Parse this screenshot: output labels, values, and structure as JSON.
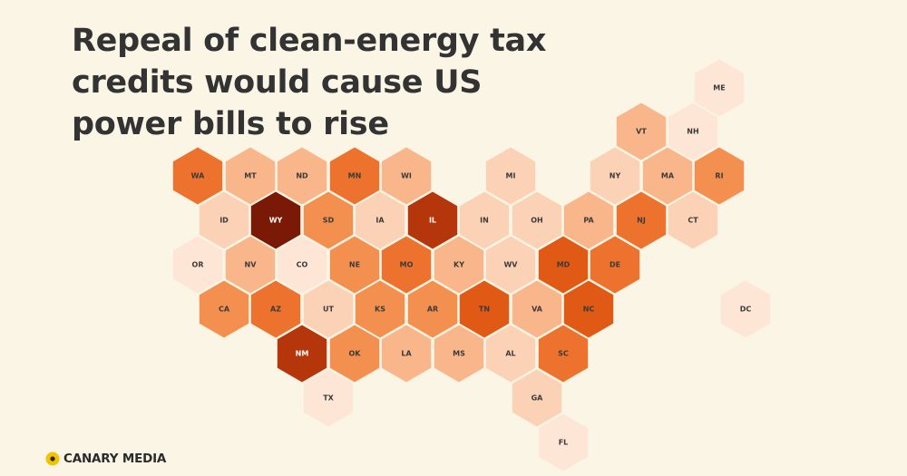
{
  "title": "Repeal of clean-energy tax credits would cause US power bills to rise",
  "brand": {
    "name": "CANARY MEDIA",
    "logo_icon": "canary-logo-icon"
  },
  "colors": {
    "background": "#fbf5e6",
    "title": "#333333",
    "scale": [
      "#fde6d6",
      "#fcd2b6",
      "#f9b68a",
      "#f3904f",
      "#ec722e",
      "#e15a15",
      "#b5360b",
      "#7a1a06"
    ]
  },
  "map": {
    "type": "hex tile map",
    "states": [
      {
        "code": "ME",
        "level": 0
      },
      {
        "code": "VT",
        "level": 2
      },
      {
        "code": "NH",
        "level": 0
      },
      {
        "code": "WA",
        "level": 4
      },
      {
        "code": "MT",
        "level": 2
      },
      {
        "code": "ND",
        "level": 2
      },
      {
        "code": "MN",
        "level": 4
      },
      {
        "code": "WI",
        "level": 2
      },
      {
        "code": "MI",
        "level": 1
      },
      {
        "code": "NY",
        "level": 1
      },
      {
        "code": "MA",
        "level": 2
      },
      {
        "code": "RI",
        "level": 3
      },
      {
        "code": "ID",
        "level": 1
      },
      {
        "code": "WY",
        "level": 7
      },
      {
        "code": "SD",
        "level": 3
      },
      {
        "code": "IA",
        "level": 1
      },
      {
        "code": "IL",
        "level": 6
      },
      {
        "code": "IN",
        "level": 1
      },
      {
        "code": "OH",
        "level": 1
      },
      {
        "code": "PA",
        "level": 2
      },
      {
        "code": "NJ",
        "level": 4
      },
      {
        "code": "CT",
        "level": 1
      },
      {
        "code": "OR",
        "level": 0
      },
      {
        "code": "NV",
        "level": 2
      },
      {
        "code": "CO",
        "level": 0
      },
      {
        "code": "NE",
        "level": 3
      },
      {
        "code": "MO",
        "level": 4
      },
      {
        "code": "KY",
        "level": 2
      },
      {
        "code": "WV",
        "level": 1
      },
      {
        "code": "MD",
        "level": 5
      },
      {
        "code": "DE",
        "level": 4
      },
      {
        "code": "DC",
        "level": 0
      },
      {
        "code": "CA",
        "level": 3
      },
      {
        "code": "AZ",
        "level": 4
      },
      {
        "code": "UT",
        "level": 1
      },
      {
        "code": "KS",
        "level": 3
      },
      {
        "code": "AR",
        "level": 3
      },
      {
        "code": "TN",
        "level": 5
      },
      {
        "code": "VA",
        "level": 2
      },
      {
        "code": "NC",
        "level": 5
      },
      {
        "code": "NM",
        "level": 6
      },
      {
        "code": "OK",
        "level": 3
      },
      {
        "code": "LA",
        "level": 2
      },
      {
        "code": "MS",
        "level": 2
      },
      {
        "code": "AL",
        "level": 1
      },
      {
        "code": "SC",
        "level": 4
      },
      {
        "code": "TX",
        "level": 0
      },
      {
        "code": "GA",
        "level": 1
      },
      {
        "code": "FL",
        "level": 0
      }
    ]
  }
}
